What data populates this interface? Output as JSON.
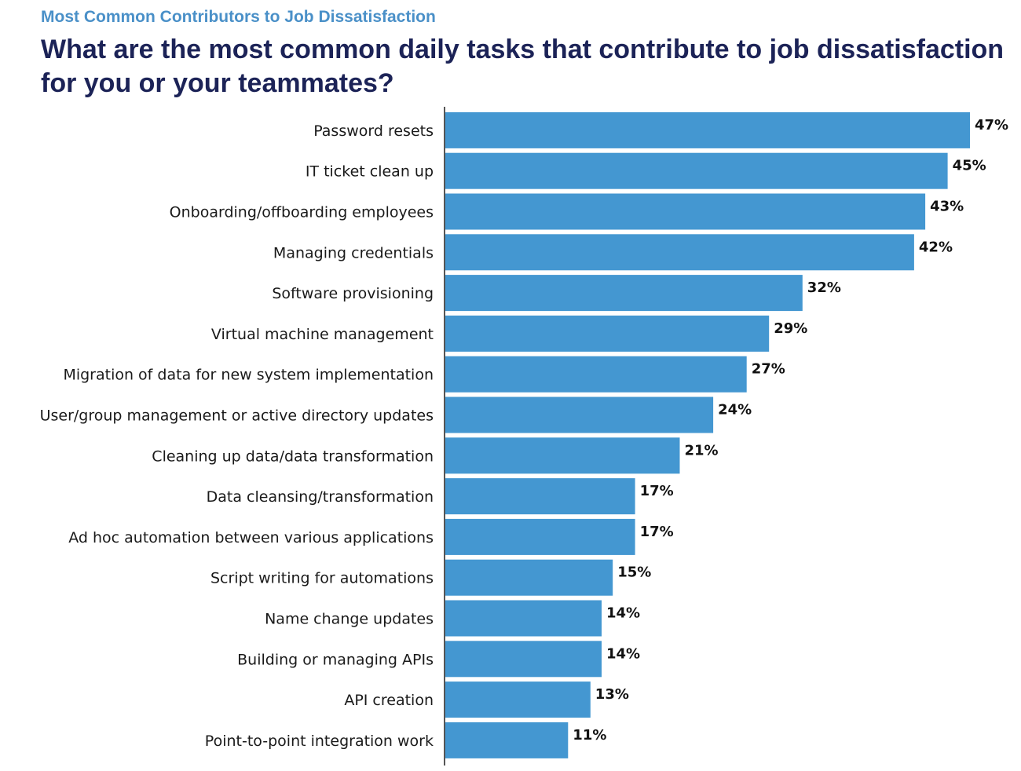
{
  "header": {
    "subtitle": "Most Common Contributors to Job Dissatisfaction",
    "title": "What are the most common daily tasks that contribute to job dissatisfaction for you or your teammates?"
  },
  "colors": {
    "bar": "#4497d1",
    "subtitle": "#4a90c8",
    "title": "#1c2357",
    "axis": "#555555"
  },
  "chart_data": {
    "type": "bar",
    "orientation": "horizontal",
    "title": "What are the most common daily tasks that contribute to job dissatisfaction for you or your teammates?",
    "categories": [
      "Password resets",
      "IT ticket clean up",
      "Onboarding/offboarding employees",
      "Managing credentials",
      "Software provisioning",
      "Virtual machine management",
      "Migration of data for new system implementation",
      "User/group management or active directory updates",
      "Cleaning up data/data transformation",
      "Data cleansing/transformation",
      "Ad hoc automation between various applications",
      "Script writing for automations",
      "Name change updates",
      "Building or managing APIs",
      "API creation",
      "Point-to-point integration work"
    ],
    "values": [
      47,
      45,
      43,
      42,
      32,
      29,
      27,
      24,
      21,
      17,
      17,
      15,
      14,
      14,
      13,
      11
    ],
    "value_labels": [
      "47%",
      "45%",
      "43%",
      "42%",
      "32%",
      "29%",
      "27%",
      "24%",
      "21%",
      "17%",
      "17%",
      "15%",
      "14%",
      "14%",
      "13%",
      "11%"
    ],
    "xlim": [
      0,
      47
    ],
    "grid": false,
    "legend": "none"
  }
}
